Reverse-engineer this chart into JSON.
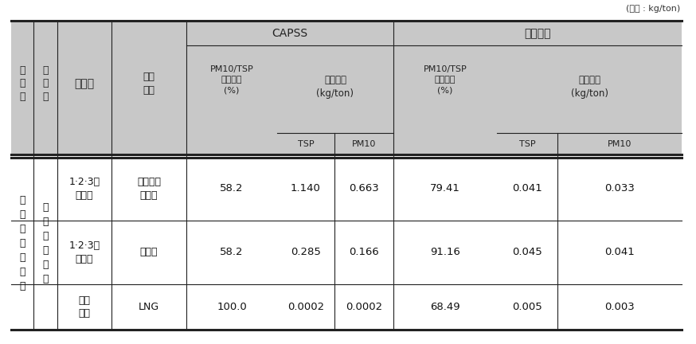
{
  "unit_text": "(단위 : kg/ton)",
  "header_bg": "#c8c8c8",
  "capss_label": "CAPSS",
  "research_label": "연구결과",
  "rows": [
    {
      "col1": "에\n너\n지\n산\n업\n연\n소",
      "col2": "공\n공\n발\n전\n시\n설",
      "col3": "1·2·3종\n보일러",
      "col4": "비민수용\n무연탄",
      "pm10tsp1": "58.2",
      "tsp1": "1.140",
      "pm101": "0.663",
      "pm10tsp2": "79.41",
      "tsp2": "0.041",
      "pm102": "0.033"
    },
    {
      "col1": "",
      "col2": "",
      "col3": "1·2·3종\n보일러",
      "col4": "유연탄",
      "pm10tsp1": "58.2",
      "tsp1": "0.285",
      "pm101": "0.166",
      "pm10tsp2": "91.16",
      "tsp2": "0.045",
      "pm102": "0.041"
    },
    {
      "col1": "",
      "col2": "",
      "col3": "가스\n터빈",
      "col4": "LNG",
      "pm10tsp1": "100.0",
      "tsp1": "0.0002",
      "pm101": "0.0002",
      "pm10tsp2": "68.49",
      "tsp2": "0.005",
      "pm102": "0.003"
    }
  ]
}
